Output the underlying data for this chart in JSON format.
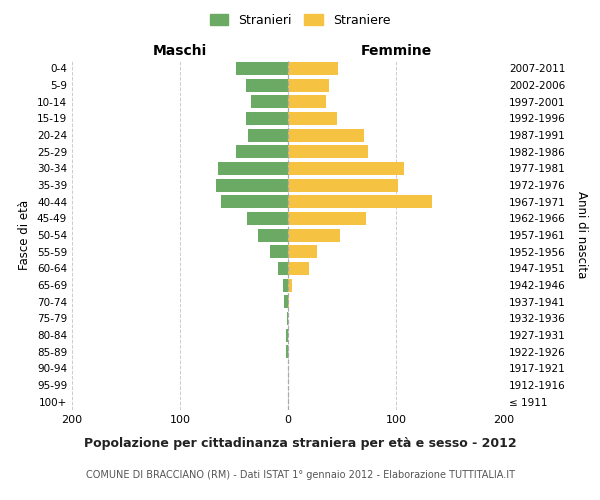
{
  "age_groups": [
    "100+",
    "95-99",
    "90-94",
    "85-89",
    "80-84",
    "75-79",
    "70-74",
    "65-69",
    "60-64",
    "55-59",
    "50-54",
    "45-49",
    "40-44",
    "35-39",
    "30-34",
    "25-29",
    "20-24",
    "15-19",
    "10-14",
    "5-9",
    "0-4"
  ],
  "birth_years": [
    "≤ 1911",
    "1912-1916",
    "1917-1921",
    "1922-1926",
    "1927-1931",
    "1932-1936",
    "1937-1941",
    "1942-1946",
    "1947-1951",
    "1952-1956",
    "1957-1961",
    "1962-1966",
    "1967-1971",
    "1972-1976",
    "1977-1981",
    "1982-1986",
    "1987-1991",
    "1992-1996",
    "1997-2001",
    "2002-2006",
    "2007-2011"
  ],
  "maschi": [
    0,
    0,
    0,
    2,
    2,
    1,
    4,
    5,
    9,
    17,
    28,
    38,
    62,
    67,
    65,
    48,
    37,
    39,
    34,
    39,
    48
  ],
  "femmine": [
    0,
    0,
    0,
    0,
    0,
    0,
    1,
    4,
    19,
    27,
    48,
    72,
    133,
    102,
    107,
    74,
    70,
    45,
    35,
    38,
    46
  ],
  "maschi_color": "#6aaa64",
  "femmine_color": "#f5c242",
  "title": "Popolazione per cittadinanza straniera per età e sesso - 2012",
  "subtitle": "COMUNE DI BRACCIANO (RM) - Dati ISTAT 1° gennaio 2012 - Elaborazione TUTTITALIA.IT",
  "xlabel_left": "Maschi",
  "xlabel_right": "Femmine",
  "ylabel_left": "Fasce di età",
  "ylabel_right": "Anni di nascita",
  "xlim": 200,
  "legend_stranieri": "Stranieri",
  "legend_straniere": "Straniere",
  "bg_color": "#ffffff",
  "grid_color": "#cccccc"
}
